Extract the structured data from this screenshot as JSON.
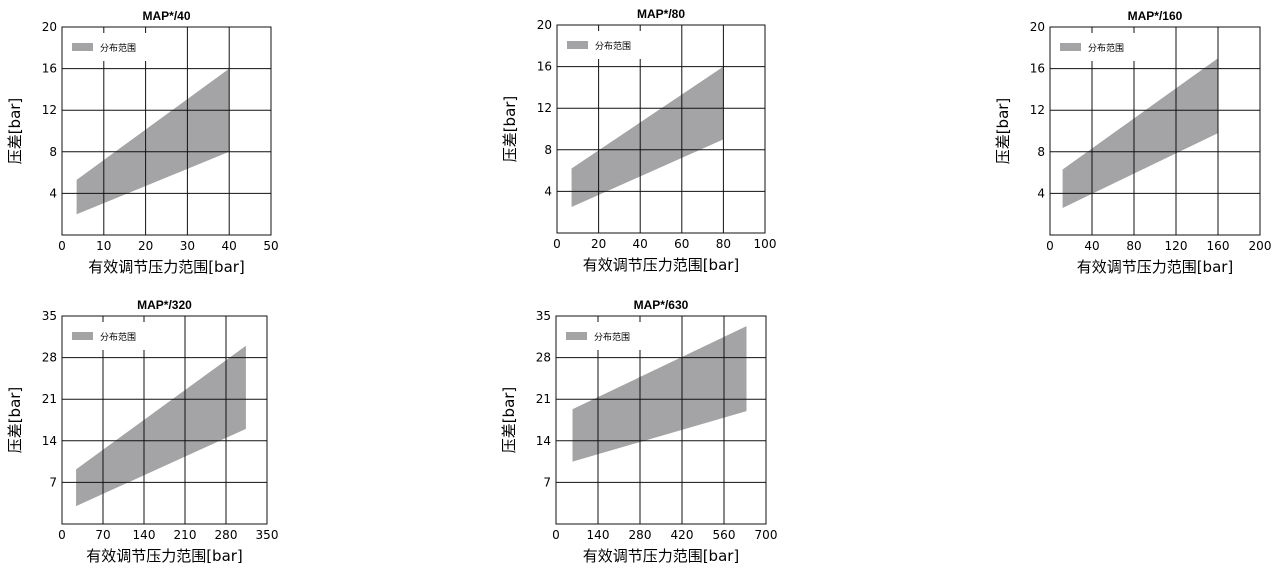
{
  "chart_data": [
    {
      "type": "area",
      "title": "MAP*/40",
      "xlabel": "有效调节压力范围[bar]",
      "ylabel": "压差[bar]",
      "xlim": [
        0,
        50
      ],
      "ylim": [
        0,
        20
      ],
      "xticks": [
        0,
        10,
        20,
        30,
        40,
        50
      ],
      "yticks": [
        4,
        8,
        12,
        16,
        20
      ],
      "legend": "top-left",
      "grid": true,
      "series": [
        {
          "name": "分布范围",
          "x": [
            3.5,
            40
          ],
          "upper": [
            5.3,
            16
          ],
          "lower": [
            2.0,
            8.0
          ]
        }
      ]
    },
    {
      "type": "area",
      "title": "MAP*/80",
      "xlabel": "有效调节压力范围[bar]",
      "ylabel": "压差[bar]",
      "xlim": [
        0,
        100
      ],
      "ylim": [
        0,
        20
      ],
      "xticks": [
        0,
        20,
        40,
        60,
        80,
        100
      ],
      "yticks": [
        4,
        8,
        12,
        16,
        20
      ],
      "legend": "top-left",
      "grid": true,
      "series": [
        {
          "name": "分布范围",
          "x": [
            7,
            80
          ],
          "upper": [
            6.2,
            16
          ],
          "lower": [
            2.5,
            9.0
          ]
        }
      ]
    },
    {
      "type": "area",
      "title": "MAP*/160",
      "xlabel": "有效调节压力范围[bar]",
      "ylabel": "压差[bar]",
      "xlim": [
        0,
        200
      ],
      "ylim": [
        0,
        20
      ],
      "xticks": [
        0,
        40,
        80,
        120,
        160,
        200
      ],
      "yticks": [
        4,
        8,
        12,
        16,
        20
      ],
      "legend": "top-left",
      "grid": true,
      "series": [
        {
          "name": "分布范围",
          "x": [
            12,
            160
          ],
          "upper": [
            6.3,
            17
          ],
          "lower": [
            2.6,
            9.8
          ]
        }
      ]
    },
    {
      "type": "area",
      "title": "MAP*/320",
      "xlabel": "有效调节压力范围[bar]",
      "ylabel": "压差[bar]",
      "xlim": [
        0,
        350
      ],
      "ylim": [
        0,
        35
      ],
      "xticks": [
        0,
        70,
        140,
        210,
        280,
        350
      ],
      "yticks": [
        7,
        14,
        21,
        28,
        35
      ],
      "legend": "top-left",
      "grid": true,
      "series": [
        {
          "name": "分布范围",
          "x": [
            24,
            314
          ],
          "upper": [
            9.2,
            30
          ],
          "lower": [
            3.0,
            16
          ]
        }
      ]
    },
    {
      "type": "area",
      "title": "MAP*/630",
      "xlabel": "有效调节压力范围[bar]",
      "ylabel": "压差[bar]",
      "xlim": [
        0,
        700
      ],
      "ylim": [
        0,
        35
      ],
      "xticks": [
        0,
        140,
        280,
        420,
        560,
        700
      ],
      "yticks": [
        7,
        14,
        21,
        28,
        35
      ],
      "legend": "top-left",
      "grid": true,
      "series": [
        {
          "name": "分布范围",
          "x": [
            55,
            635
          ],
          "upper": [
            19.3,
            33.3
          ],
          "lower": [
            10.5,
            19
          ]
        }
      ]
    }
  ],
  "colors": {
    "band": "#a4a4a6",
    "grid": "#111111",
    "frame": "#111111"
  }
}
